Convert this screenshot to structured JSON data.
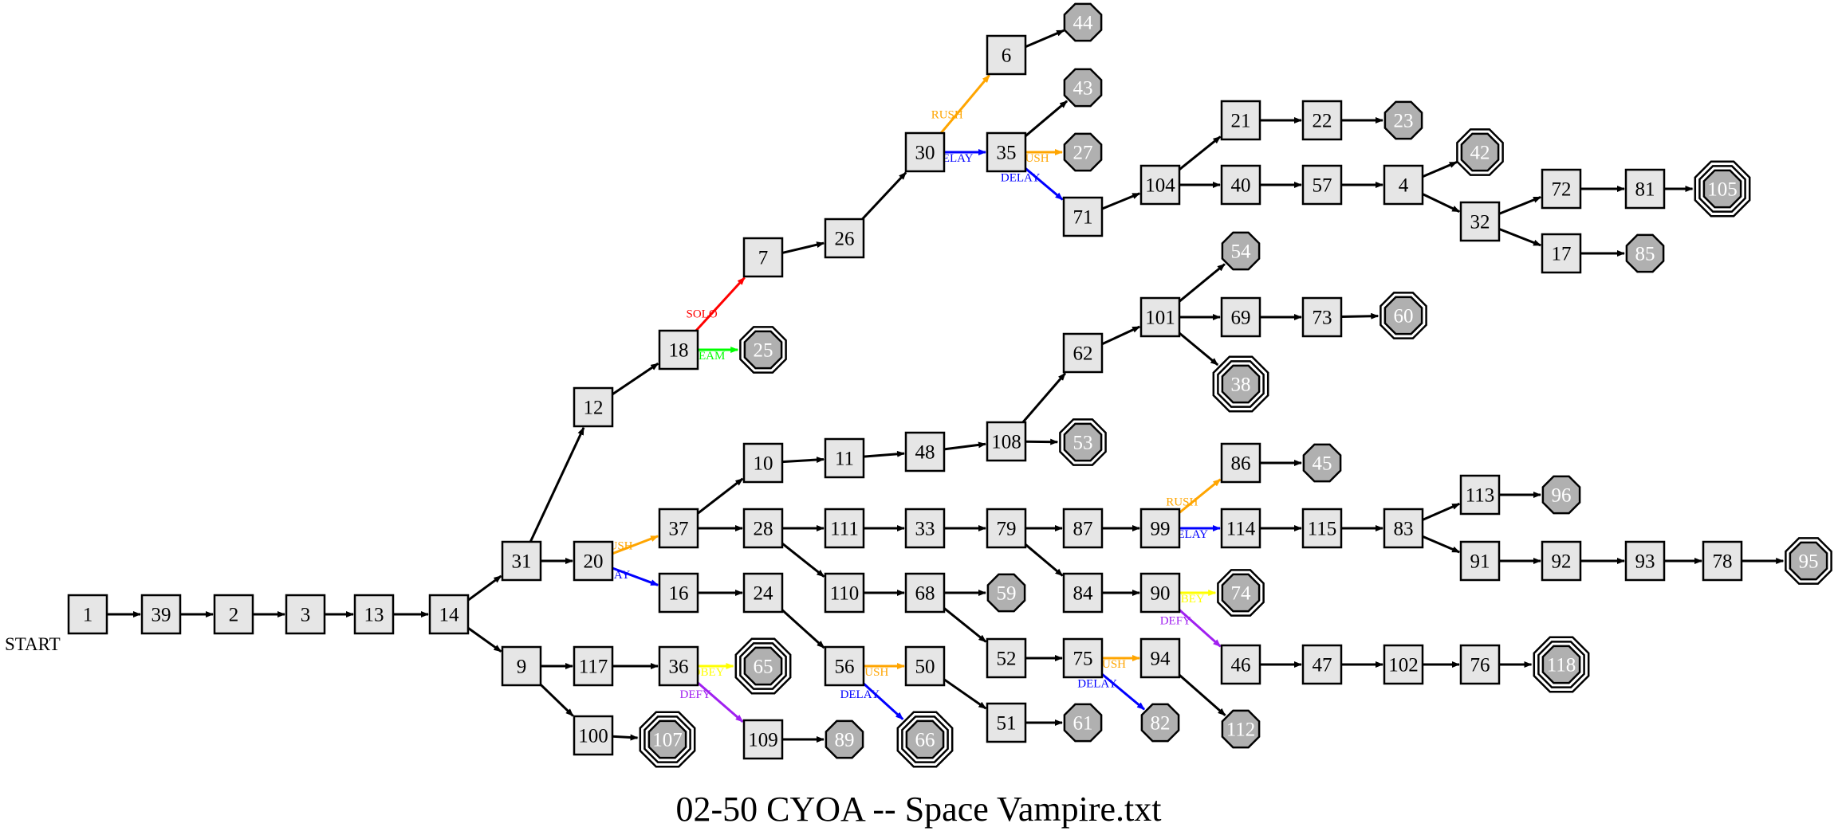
{
  "title": "02-50 CYOA -- Space Vampire.txt",
  "start_label": "START",
  "colors": {
    "default": "#000000",
    "RUSH": "#ffa500",
    "DELAY": "#0000ff",
    "SOLO": "#ff0000",
    "TEAM": "#00ff00",
    "OBEY": "#ffff00",
    "DEFY": "#a020f0"
  },
  "nodes": [
    {
      "id": "1",
      "shape": "box"
    },
    {
      "id": "39",
      "shape": "box"
    },
    {
      "id": "2",
      "shape": "box"
    },
    {
      "id": "3",
      "shape": "box"
    },
    {
      "id": "13",
      "shape": "box"
    },
    {
      "id": "14",
      "shape": "box"
    },
    {
      "id": "31",
      "shape": "box"
    },
    {
      "id": "9",
      "shape": "box"
    },
    {
      "id": "12",
      "shape": "box"
    },
    {
      "id": "20",
      "shape": "box"
    },
    {
      "id": "117",
      "shape": "box"
    },
    {
      "id": "100",
      "shape": "box"
    },
    {
      "id": "18",
      "shape": "box"
    },
    {
      "id": "37",
      "shape": "box"
    },
    {
      "id": "16",
      "shape": "box"
    },
    {
      "id": "36",
      "shape": "box"
    },
    {
      "id": "107",
      "shape": "end",
      "rings": 3
    },
    {
      "id": "7",
      "shape": "box"
    },
    {
      "id": "25",
      "shape": "end",
      "rings": 2
    },
    {
      "id": "10",
      "shape": "box"
    },
    {
      "id": "28",
      "shape": "box"
    },
    {
      "id": "24",
      "shape": "box"
    },
    {
      "id": "65",
      "shape": "end",
      "rings": 3
    },
    {
      "id": "109",
      "shape": "box"
    },
    {
      "id": "26",
      "shape": "box"
    },
    {
      "id": "11",
      "shape": "box"
    },
    {
      "id": "111",
      "shape": "box"
    },
    {
      "id": "110",
      "shape": "box"
    },
    {
      "id": "56",
      "shape": "box"
    },
    {
      "id": "89",
      "shape": "end",
      "rings": 1
    },
    {
      "id": "30",
      "shape": "box"
    },
    {
      "id": "48",
      "shape": "box"
    },
    {
      "id": "33",
      "shape": "box"
    },
    {
      "id": "68",
      "shape": "box"
    },
    {
      "id": "50",
      "shape": "box"
    },
    {
      "id": "66",
      "shape": "end",
      "rings": 3
    },
    {
      "id": "6",
      "shape": "box"
    },
    {
      "id": "35",
      "shape": "box"
    },
    {
      "id": "108",
      "shape": "box"
    },
    {
      "id": "79",
      "shape": "box"
    },
    {
      "id": "59",
      "shape": "end",
      "rings": 1
    },
    {
      "id": "52",
      "shape": "box"
    },
    {
      "id": "51",
      "shape": "box"
    },
    {
      "id": "44",
      "shape": "end",
      "rings": 1
    },
    {
      "id": "43",
      "shape": "end",
      "rings": 1
    },
    {
      "id": "27",
      "shape": "end",
      "rings": 1
    },
    {
      "id": "71",
      "shape": "box"
    },
    {
      "id": "62",
      "shape": "box"
    },
    {
      "id": "53",
      "shape": "end",
      "rings": 2
    },
    {
      "id": "87",
      "shape": "box"
    },
    {
      "id": "84",
      "shape": "box"
    },
    {
      "id": "75",
      "shape": "box"
    },
    {
      "id": "61",
      "shape": "end",
      "rings": 1
    },
    {
      "id": "104",
      "shape": "box"
    },
    {
      "id": "101",
      "shape": "box"
    },
    {
      "id": "99",
      "shape": "box"
    },
    {
      "id": "90",
      "shape": "box"
    },
    {
      "id": "94",
      "shape": "box"
    },
    {
      "id": "82",
      "shape": "end",
      "rings": 1
    },
    {
      "id": "21",
      "shape": "box"
    },
    {
      "id": "40",
      "shape": "box"
    },
    {
      "id": "54",
      "shape": "end",
      "rings": 1
    },
    {
      "id": "69",
      "shape": "box"
    },
    {
      "id": "38",
      "shape": "end",
      "rings": 3
    },
    {
      "id": "86",
      "shape": "box"
    },
    {
      "id": "114",
      "shape": "box"
    },
    {
      "id": "74",
      "shape": "end",
      "rings": 2
    },
    {
      "id": "46",
      "shape": "box"
    },
    {
      "id": "112",
      "shape": "end",
      "rings": 1
    },
    {
      "id": "22",
      "shape": "box"
    },
    {
      "id": "57",
      "shape": "box"
    },
    {
      "id": "73",
      "shape": "box"
    },
    {
      "id": "45",
      "shape": "end",
      "rings": 1
    },
    {
      "id": "115",
      "shape": "box"
    },
    {
      "id": "47",
      "shape": "box"
    },
    {
      "id": "23",
      "shape": "end",
      "rings": 1
    },
    {
      "id": "4",
      "shape": "box"
    },
    {
      "id": "60",
      "shape": "end",
      "rings": 2
    },
    {
      "id": "83",
      "shape": "box"
    },
    {
      "id": "102",
      "shape": "box"
    },
    {
      "id": "42",
      "shape": "end",
      "rings": 2
    },
    {
      "id": "32",
      "shape": "box"
    },
    {
      "id": "113",
      "shape": "box"
    },
    {
      "id": "91",
      "shape": "box"
    },
    {
      "id": "76",
      "shape": "box"
    },
    {
      "id": "72",
      "shape": "box"
    },
    {
      "id": "17",
      "shape": "box"
    },
    {
      "id": "96",
      "shape": "end",
      "rings": 1
    },
    {
      "id": "92",
      "shape": "box"
    },
    {
      "id": "118",
      "shape": "end",
      "rings": 3
    },
    {
      "id": "81",
      "shape": "box"
    },
    {
      "id": "85",
      "shape": "end",
      "rings": 1
    },
    {
      "id": "93",
      "shape": "box"
    },
    {
      "id": "105",
      "shape": "end",
      "rings": 3
    },
    {
      "id": "78",
      "shape": "box"
    },
    {
      "id": "95",
      "shape": "end",
      "rings": 2
    }
  ],
  "edges": [
    {
      "from": "1",
      "to": "39"
    },
    {
      "from": "39",
      "to": "2"
    },
    {
      "from": "2",
      "to": "3"
    },
    {
      "from": "3",
      "to": "13"
    },
    {
      "from": "13",
      "to": "14"
    },
    {
      "from": "14",
      "to": "31"
    },
    {
      "from": "14",
      "to": "9"
    },
    {
      "from": "31",
      "to": "12"
    },
    {
      "from": "31",
      "to": "20"
    },
    {
      "from": "9",
      "to": "117"
    },
    {
      "from": "9",
      "to": "100"
    },
    {
      "from": "12",
      "to": "18"
    },
    {
      "from": "20",
      "to": "37",
      "label": "RUSH"
    },
    {
      "from": "20",
      "to": "16",
      "label": "DELAY"
    },
    {
      "from": "117",
      "to": "36"
    },
    {
      "from": "100",
      "to": "107"
    },
    {
      "from": "18",
      "to": "7",
      "label": "SOLO"
    },
    {
      "from": "18",
      "to": "25",
      "label": "TEAM"
    },
    {
      "from": "37",
      "to": "10"
    },
    {
      "from": "37",
      "to": "28"
    },
    {
      "from": "16",
      "to": "24"
    },
    {
      "from": "36",
      "to": "65",
      "label": "OBEY"
    },
    {
      "from": "36",
      "to": "109",
      "label": "DEFY"
    },
    {
      "from": "7",
      "to": "26"
    },
    {
      "from": "10",
      "to": "11"
    },
    {
      "from": "28",
      "to": "111"
    },
    {
      "from": "28",
      "to": "110"
    },
    {
      "from": "24",
      "to": "56"
    },
    {
      "from": "109",
      "to": "89"
    },
    {
      "from": "26",
      "to": "30"
    },
    {
      "from": "11",
      "to": "48"
    },
    {
      "from": "111",
      "to": "33"
    },
    {
      "from": "110",
      "to": "68"
    },
    {
      "from": "56",
      "to": "50",
      "label": "RUSH"
    },
    {
      "from": "56",
      "to": "66",
      "label": "DELAY"
    },
    {
      "from": "30",
      "to": "6",
      "label": "RUSH"
    },
    {
      "from": "30",
      "to": "35",
      "label": "DELAY"
    },
    {
      "from": "48",
      "to": "108"
    },
    {
      "from": "33",
      "to": "79"
    },
    {
      "from": "68",
      "to": "59"
    },
    {
      "from": "68",
      "to": "52"
    },
    {
      "from": "50",
      "to": "51"
    },
    {
      "from": "6",
      "to": "44"
    },
    {
      "from": "35",
      "to": "43"
    },
    {
      "from": "35",
      "to": "27",
      "label": "RUSH"
    },
    {
      "from": "35",
      "to": "71",
      "label": "DELAY"
    },
    {
      "from": "108",
      "to": "62"
    },
    {
      "from": "108",
      "to": "53"
    },
    {
      "from": "79",
      "to": "87"
    },
    {
      "from": "79",
      "to": "84"
    },
    {
      "from": "52",
      "to": "75"
    },
    {
      "from": "51",
      "to": "61"
    },
    {
      "from": "71",
      "to": "104"
    },
    {
      "from": "62",
      "to": "101"
    },
    {
      "from": "87",
      "to": "99"
    },
    {
      "from": "84",
      "to": "90"
    },
    {
      "from": "75",
      "to": "94",
      "label": "RUSH"
    },
    {
      "from": "75",
      "to": "82",
      "label": "DELAY"
    },
    {
      "from": "104",
      "to": "21"
    },
    {
      "from": "104",
      "to": "40"
    },
    {
      "from": "101",
      "to": "54"
    },
    {
      "from": "101",
      "to": "69"
    },
    {
      "from": "101",
      "to": "38"
    },
    {
      "from": "99",
      "to": "86",
      "label": "RUSH"
    },
    {
      "from": "99",
      "to": "114",
      "label": "DELAY"
    },
    {
      "from": "90",
      "to": "74",
      "label": "OBEY"
    },
    {
      "from": "90",
      "to": "46",
      "label": "DEFY"
    },
    {
      "from": "94",
      "to": "112"
    },
    {
      "from": "21",
      "to": "22"
    },
    {
      "from": "40",
      "to": "57"
    },
    {
      "from": "69",
      "to": "73"
    },
    {
      "from": "86",
      "to": "45"
    },
    {
      "from": "114",
      "to": "115"
    },
    {
      "from": "46",
      "to": "47"
    },
    {
      "from": "22",
      "to": "23"
    },
    {
      "from": "57",
      "to": "4"
    },
    {
      "from": "73",
      "to": "60"
    },
    {
      "from": "115",
      "to": "83"
    },
    {
      "from": "47",
      "to": "102"
    },
    {
      "from": "4",
      "to": "42"
    },
    {
      "from": "4",
      "to": "32"
    },
    {
      "from": "83",
      "to": "113"
    },
    {
      "from": "83",
      "to": "91"
    },
    {
      "from": "102",
      "to": "76"
    },
    {
      "from": "32",
      "to": "72"
    },
    {
      "from": "32",
      "to": "17"
    },
    {
      "from": "113",
      "to": "96"
    },
    {
      "from": "91",
      "to": "92"
    },
    {
      "from": "76",
      "to": "118"
    },
    {
      "from": "72",
      "to": "81"
    },
    {
      "from": "17",
      "to": "85"
    },
    {
      "from": "92",
      "to": "93"
    },
    {
      "from": "81",
      "to": "105"
    },
    {
      "from": "93",
      "to": "78"
    },
    {
      "from": "78",
      "to": "95"
    }
  ]
}
